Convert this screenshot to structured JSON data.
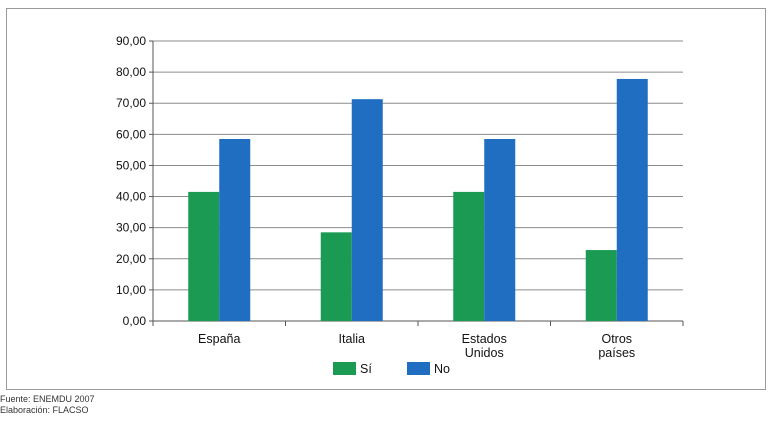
{
  "chart_data": {
    "type": "bar",
    "categories": [
      [
        "España"
      ],
      [
        "Italia"
      ],
      [
        "Estados",
        "Unidos"
      ],
      [
        "Otros",
        "países"
      ]
    ],
    "series": [
      {
        "name": "Sí",
        "color": "#1a9a52",
        "values": [
          41.5,
          28.5,
          41.5,
          22.8
        ]
      },
      {
        "name": "No",
        "color": "#1f6ec2",
        "values": [
          58.5,
          71.3,
          58.5,
          77.8
        ]
      }
    ],
    "y_ticks": [
      "0,00",
      "10,00",
      "20,00",
      "30,00",
      "40,00",
      "50,00",
      "60,00",
      "70,00",
      "80,00",
      "90,00"
    ],
    "ylim": [
      0,
      90
    ],
    "grid": true,
    "legend_position": "bottom"
  },
  "notes": {
    "source": "Fuente: ENEMDU 2007",
    "elaboration": "Elaboración: FLACSO"
  }
}
